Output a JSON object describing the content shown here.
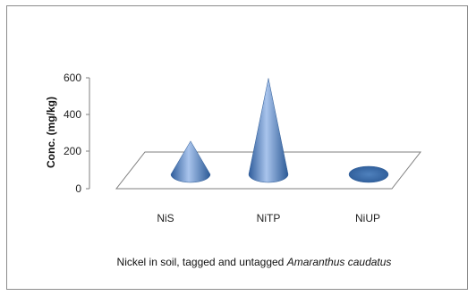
{
  "chart_data": {
    "type": "bar",
    "style": "3d-cone",
    "categories": [
      "NiS",
      "NiTP",
      "NiUP"
    ],
    "values": [
      180,
      520,
      8
    ],
    "xlabel": "Nickel in soil, tagged and untagged",
    "xlabel_italic": "Amaranthus caudatus",
    "ylabel": "Conc. (mg/kg)",
    "ylim": [
      0,
      600
    ],
    "yticks": [
      "0",
      "200",
      "400",
      "600"
    ],
    "grid": false,
    "legend": "none",
    "colors": {
      "cone_light": "#a9c4ec",
      "cone_mid": "#4f81bd",
      "cone_dark": "#2c5a96",
      "floor_stroke": "#7f7f7f"
    }
  }
}
